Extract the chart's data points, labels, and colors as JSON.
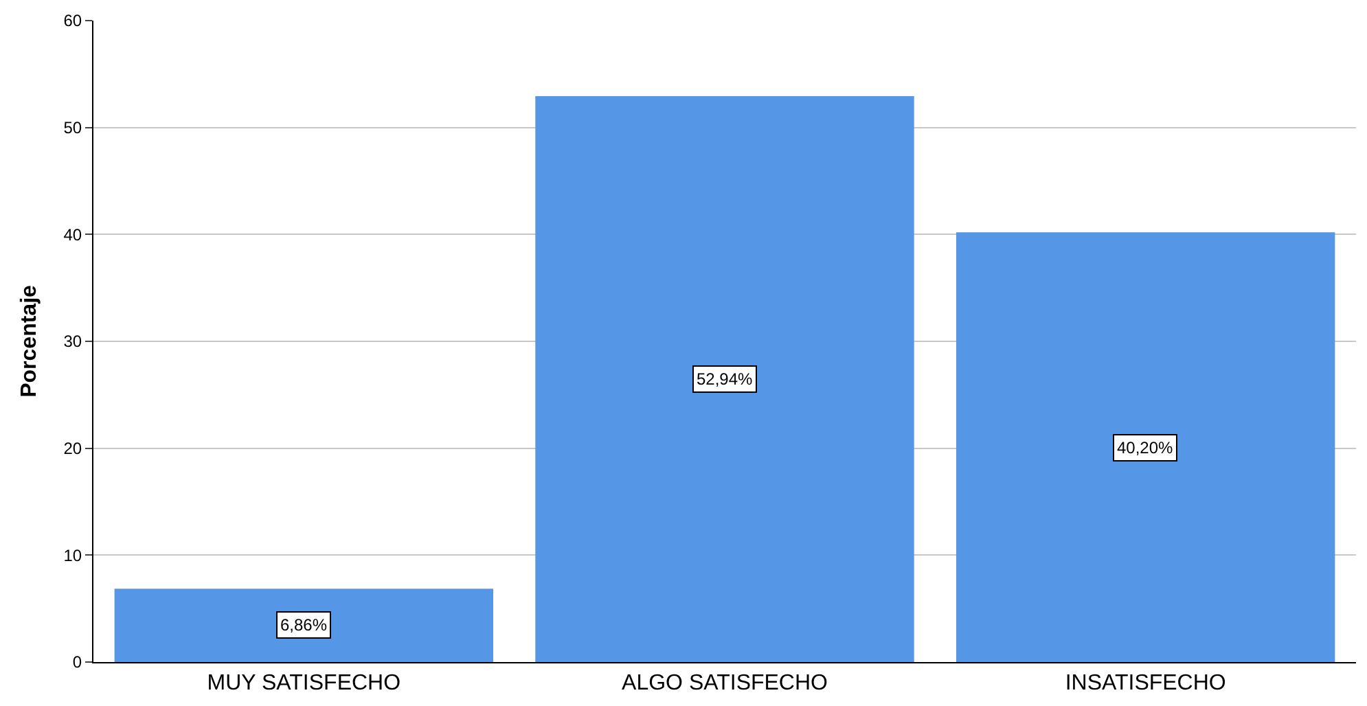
{
  "chart_data": {
    "type": "bar",
    "ylabel": "Porcentaje",
    "categories": [
      "MUY SATISFECHO",
      "ALGO SATISFECHO",
      "INSATISFECHO"
    ],
    "values": [
      6.86,
      52.94,
      40.2
    ],
    "value_labels": [
      "6,86%",
      "52,94%",
      "40,20%"
    ],
    "color": "#5596e6",
    "ylim": [
      0,
      60
    ],
    "yticks": [
      0,
      10,
      20,
      30,
      40,
      50,
      60
    ],
    "grid": "y"
  }
}
